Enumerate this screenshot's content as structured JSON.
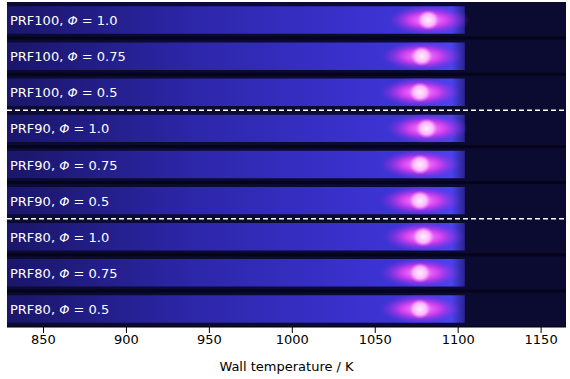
{
  "chart_data": {
    "type": "flame_image",
    "x_label": "Wall temperature / K",
    "xlim": [
      828,
      1165
    ],
    "xticks": [
      850,
      900,
      950,
      1000,
      1050,
      1100,
      1150
    ],
    "tick_labels": "x",
    "emission_end": 1104,
    "rows": [
      {
        "label": "PRF100, Φ = 1.0",
        "flame_position": 1082
      },
      {
        "label": "PRF100, Φ = 0.75",
        "flame_position": 1078
      },
      {
        "label": "PRF100, Φ = 0.5",
        "flame_position": 1077
      },
      {
        "label": "PRF90, Φ = 1.0",
        "flame_position": 1081
      },
      {
        "label": "PRF90, Φ = 0.75",
        "flame_position": 1077
      },
      {
        "label": "PRF90, Φ = 0.5",
        "flame_position": 1077
      },
      {
        "label": "PRF80, Φ = 1.0",
        "flame_position": 1079
      },
      {
        "label": "PRF80, Φ = 0.75",
        "flame_position": 1077
      },
      {
        "label": "PRF80, Φ = 0.5",
        "flame_position": 1077
      }
    ]
  }
}
